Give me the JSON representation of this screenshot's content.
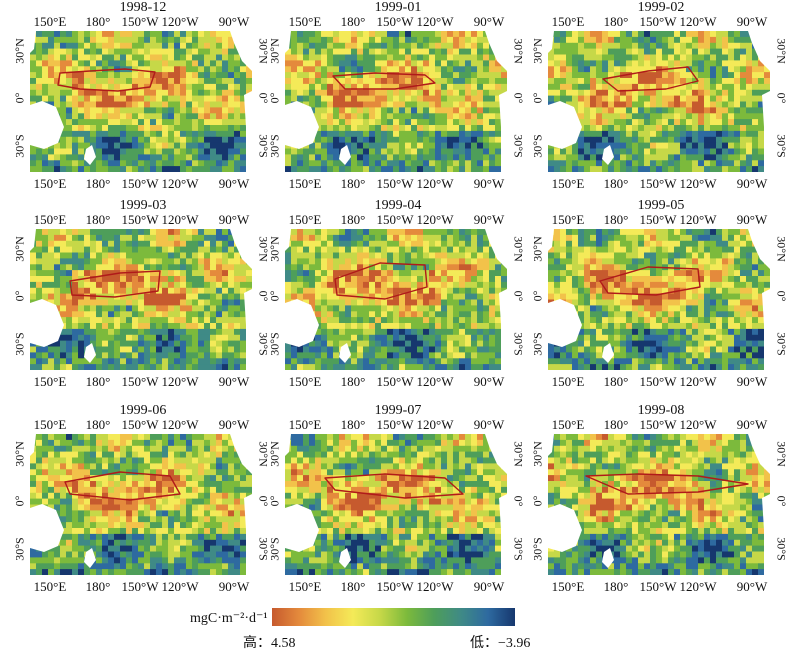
{
  "panels": [
    {
      "title": "1998-12"
    },
    {
      "title": "1999-01"
    },
    {
      "title": "1999-02"
    },
    {
      "title": "1999-03"
    },
    {
      "title": "1999-04"
    },
    {
      "title": "1999-05"
    },
    {
      "title": "1999-06"
    },
    {
      "title": "1999-07"
    },
    {
      "title": "1999-08"
    }
  ],
  "lon_ticks": [
    "150°E",
    "180°",
    "150°W",
    "120°W",
    "90°W"
  ],
  "lat_ticks": [
    "30°N",
    "0°",
    "30°S"
  ],
  "legend": {
    "unit": "mgC·m⁻²·d⁻¹",
    "high_label": "高：4.58",
    "low_label": "低：−3.96",
    "high_value": 4.58,
    "low_value": -3.96,
    "colors": [
      "#c65a2e",
      "#e48a3c",
      "#f2c24a",
      "#f4ea58",
      "#c6d848",
      "#7cba3c",
      "#4e9e5a",
      "#3f8a86",
      "#2e6aa0",
      "#16376e"
    ]
  }
}
